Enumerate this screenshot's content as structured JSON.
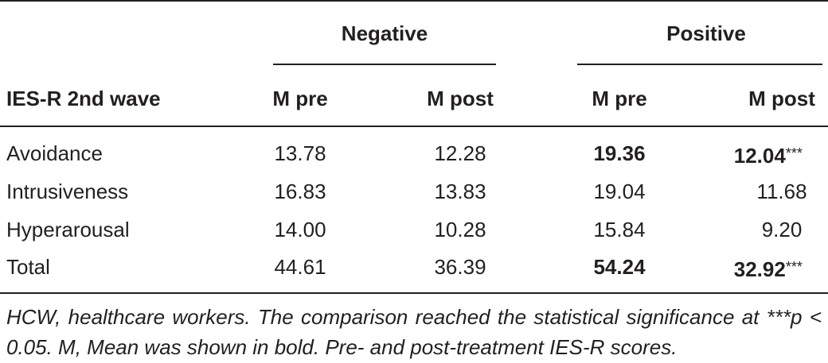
{
  "table": {
    "group_headers": [
      "Negative",
      "Positive"
    ],
    "column_headers": [
      "IES-R 2nd wave",
      "M pre",
      "M post",
      "M pre",
      "M post"
    ],
    "rows": [
      {
        "label": "Avoidance",
        "cells": [
          {
            "text": "13.78"
          },
          {
            "text": "12.28"
          },
          {
            "text": "19.36",
            "bold": true
          },
          {
            "text": "12.04",
            "bold": true,
            "note": "***"
          }
        ]
      },
      {
        "label": "Intrusiveness",
        "cells": [
          {
            "text": "16.83"
          },
          {
            "text": "13.83"
          },
          {
            "text": "19.04"
          },
          {
            "text": "11.68"
          }
        ]
      },
      {
        "label": "Hyperarousal",
        "cells": [
          {
            "text": "14.00"
          },
          {
            "text": "10.28"
          },
          {
            "text": "15.84"
          },
          {
            "text": "9.20"
          }
        ]
      },
      {
        "label": "Total",
        "cells": [
          {
            "text": "44.61"
          },
          {
            "text": "36.39"
          },
          {
            "text": "54.24",
            "bold": true
          },
          {
            "text": "32.92",
            "bold": true,
            "note": "***"
          }
        ]
      }
    ],
    "footnote": "HCW, healthcare workers. The comparison reached the statistical significance at ***p < 0.05. M, Mean was shown in bold. Pre- and post-treatment IES-R scores."
  }
}
